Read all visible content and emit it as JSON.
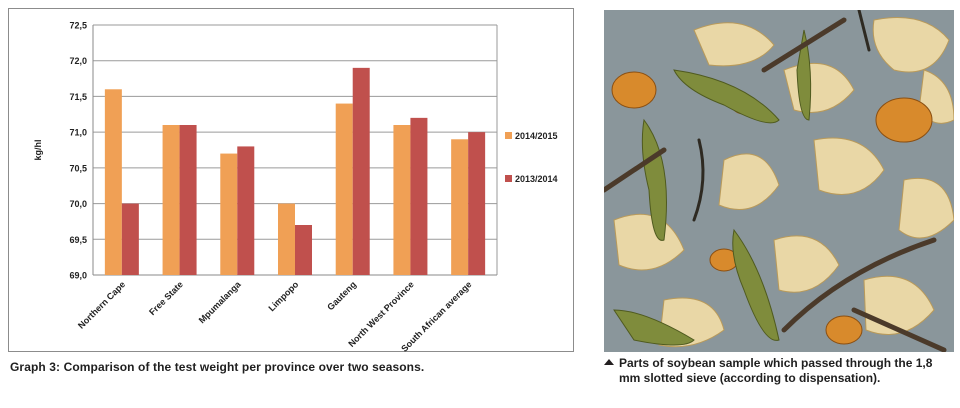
{
  "chart_data": {
    "type": "bar",
    "title": "",
    "xlabel": "",
    "ylabel": "kg/hl",
    "ylim": [
      69.0,
      72.5
    ],
    "yticks": [
      "69,0",
      "69,5",
      "70,0",
      "70,5",
      "71,0",
      "71,5",
      "72,0",
      "72,5"
    ],
    "categories": [
      "Northern Cape",
      "Free State",
      "Mpumalanga",
      "Limpopo",
      "Gauteng",
      "North West Province",
      "South African average"
    ],
    "series": [
      {
        "name": "2014/2015",
        "color": "#f0a055",
        "values": [
          71.6,
          71.1,
          70.7,
          70.0,
          71.4,
          71.1,
          70.9
        ]
      },
      {
        "name": "2013/2014",
        "color": "#c0504d",
        "values": [
          70.0,
          71.1,
          70.8,
          69.7,
          71.9,
          71.2,
          71.0
        ]
      }
    ],
    "legend_position": "right",
    "grid": true
  },
  "chart_caption": "Graph 3: Comparison of the test weight per province over two seasons.",
  "photo_caption": "Parts of soybean sample which passed through the 1,8 mm slotted sieve (according to dispensation).",
  "photo_caption_icon": "triangle-up-icon"
}
